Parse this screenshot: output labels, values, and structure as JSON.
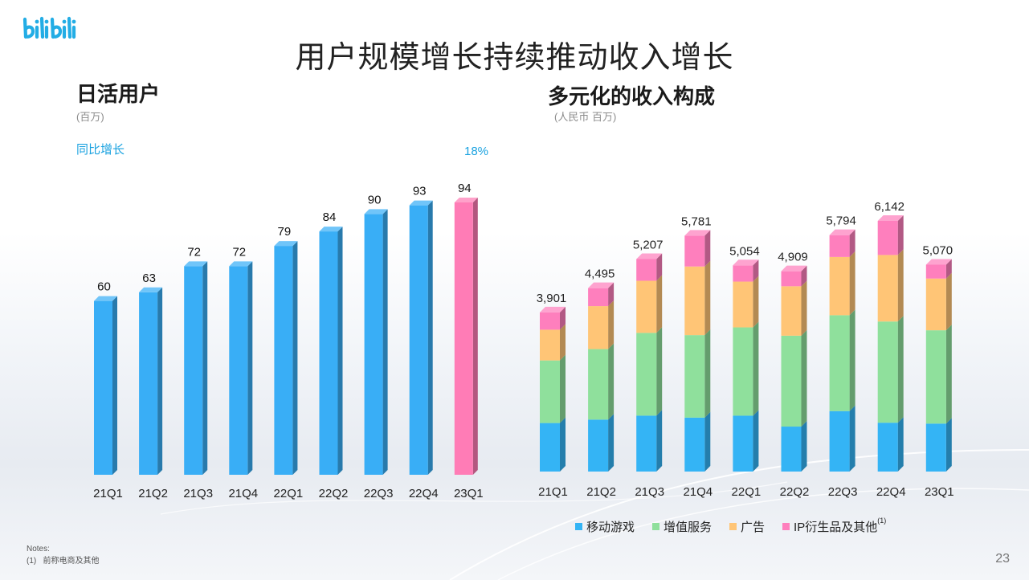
{
  "slide": {
    "title": "用户规模增长持续推动收入增长",
    "logo_text": "bilibili",
    "page_number": "23",
    "notes_heading": "Notes:",
    "notes_item": "(1)   前称电商及其他",
    "colors": {
      "brand_blue": "#23ade5",
      "dau_bar": "#39aef6",
      "dau_bar_highlight": "#ff7cb6",
      "mobile_games": "#34b4f5",
      "vas": "#8fe09c",
      "advertising": "#ffc576",
      "ip_other": "#fe7fbd"
    }
  },
  "dau": {
    "title": "日活用户",
    "unit": "(百万)",
    "yoy_label": "同比增长",
    "yoy_value": "18%"
  },
  "revenue": {
    "title": "多元化的收入构成",
    "unit": "(人民币 百万)",
    "legend": [
      {
        "label": "移动游戏",
        "color": "#34b4f5"
      },
      {
        "label": "增值服务",
        "color": "#8fe09c"
      },
      {
        "label": "广告",
        "color": "#ffc576"
      },
      {
        "label": "IP衍生品及其他",
        "sup": "(1)",
        "color": "#fe7fbd"
      }
    ]
  },
  "chart_data": [
    {
      "type": "bar",
      "title": "日活用户",
      "ylabel": "",
      "categories": [
        "21Q1",
        "21Q2",
        "21Q3",
        "21Q4",
        "22Q1",
        "22Q2",
        "22Q3",
        "22Q4",
        "23Q1"
      ],
      "values": [
        60,
        63,
        72,
        72,
        79,
        84,
        90,
        93,
        94
      ],
      "data_labels": [
        "60",
        "63",
        "72",
        "72",
        "79",
        "84",
        "90",
        "93",
        "94"
      ],
      "highlight_index": 8,
      "ylim": [
        0,
        100
      ],
      "grid": false,
      "legend": "none"
    },
    {
      "type": "bar",
      "stacked": true,
      "title": "多元化的收入构成",
      "categories": [
        "21Q1",
        "21Q2",
        "21Q3",
        "21Q4",
        "22Q1",
        "22Q2",
        "22Q3",
        "22Q4",
        "23Q1"
      ],
      "series": [
        {
          "name": "移动游戏",
          "values": [
            1189,
            1273,
            1370,
            1322,
            1369,
            1102,
            1481,
            1197,
            1175
          ]
        },
        {
          "name": "增值服务",
          "values": [
            1534,
            1728,
            2028,
            2022,
            2164,
            2227,
            2350,
            2480,
            2287
          ]
        },
        {
          "name": "广告",
          "values": [
            753,
            1053,
            1277,
            1681,
            1122,
            1212,
            1427,
            1630,
            1268
          ]
        },
        {
          "name": "IP衍生品及其他",
          "values": [
            425,
            441,
            532,
            756,
            399,
            368,
            536,
            835,
            340
          ]
        }
      ],
      "totals": [
        3901,
        4495,
        5207,
        5781,
        5054,
        4909,
        5794,
        6142,
        5070
      ],
      "data_labels": [
        "3,901",
        "4,495",
        "5,207",
        "5,781",
        "5,054",
        "4,909",
        "5,794",
        "6,142",
        "5,070"
      ],
      "ylim": [
        0,
        7000
      ],
      "grid": false,
      "legend": "bottom"
    }
  ]
}
